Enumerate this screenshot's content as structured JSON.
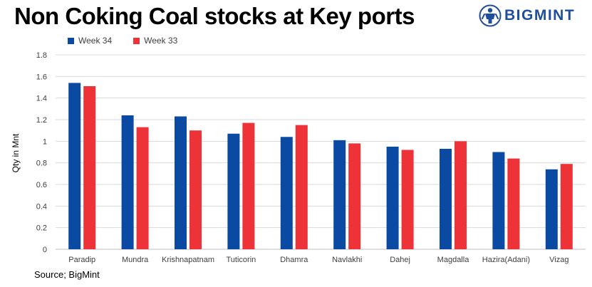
{
  "brand": {
    "name": "BIGMINT",
    "logo_icon": "person-logo-icon",
    "color": "#1e4e9d"
  },
  "source_text": "Source; BigMint",
  "chart_data": {
    "type": "bar",
    "title": "Non Coking Coal stocks at Key ports",
    "xlabel": "",
    "ylabel": "Qty in Mnt",
    "ylim": [
      0,
      1.8
    ],
    "yticks": [
      "0",
      "0.2",
      "0.4",
      "0.6",
      "0.8",
      "1",
      "1.2",
      "1.4",
      "1.6",
      "1.8"
    ],
    "grid": true,
    "legend_position": "top-left",
    "categories": [
      "Paradip",
      "Mundra",
      "Krishnapatnam",
      "Tuticorin",
      "Dhamra",
      "Navlakhi",
      "Dahej",
      "Magdalla",
      "Hazira(Adani)",
      "Vizag"
    ],
    "series": [
      {
        "name": "Week 34",
        "color": "#0b4aa3",
        "values": [
          1.54,
          1.24,
          1.23,
          1.07,
          1.04,
          1.01,
          0.95,
          0.93,
          0.9,
          0.74
        ]
      },
      {
        "name": "Week 33",
        "color": "#ee3338",
        "values": [
          1.51,
          1.13,
          1.1,
          1.17,
          1.15,
          0.98,
          0.92,
          1.0,
          0.84,
          0.79
        ]
      }
    ]
  }
}
